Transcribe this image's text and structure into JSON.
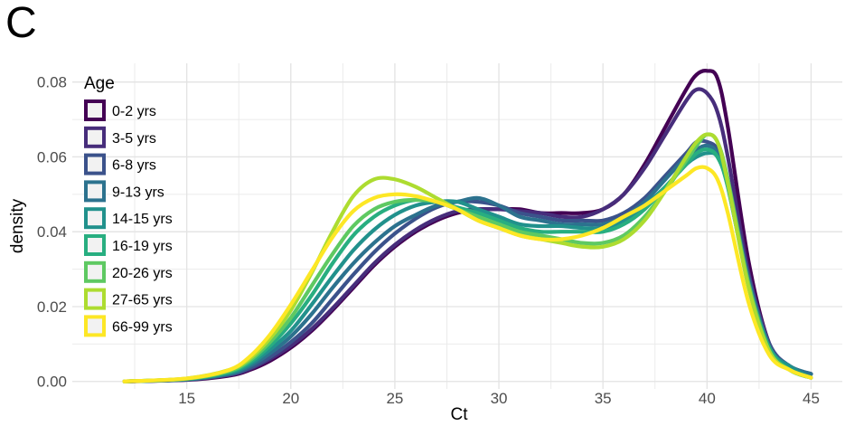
{
  "panel_label": "C",
  "chart_data": {
    "type": "line",
    "kind": "density",
    "xlabel": "Ct",
    "ylabel": "density",
    "xlim": [
      9.5,
      46.5
    ],
    "ylim": [
      -0.002,
      0.085
    ],
    "xticks": [
      15,
      20,
      25,
      30,
      35,
      40,
      45
    ],
    "xtick_labels": [
      "15",
      "20",
      "25",
      "30",
      "35",
      "40",
      "45"
    ],
    "yticks": [
      0.0,
      0.02,
      0.04,
      0.06,
      0.08
    ],
    "ytick_labels": [
      "0.00",
      "0.02",
      "0.04",
      "0.06",
      "0.08"
    ],
    "grid": true,
    "legend": {
      "title": "Age",
      "placement": "top-left"
    },
    "x": [
      12,
      15,
      17,
      18,
      19,
      20,
      21,
      22,
      23,
      24,
      25,
      26,
      27,
      28,
      29,
      30,
      31,
      32,
      33,
      34,
      35,
      36,
      37,
      38,
      39,
      39.5,
      40,
      40.5,
      41,
      42,
      43,
      44,
      45
    ],
    "series": [
      {
        "name": "0-2 yrs",
        "color": "#440154",
        "values": [
          0.0,
          0.0004,
          0.0015,
          0.003,
          0.0055,
          0.009,
          0.0135,
          0.019,
          0.025,
          0.031,
          0.036,
          0.04,
          0.043,
          0.045,
          0.046,
          0.046,
          0.046,
          0.045,
          0.045,
          0.045,
          0.046,
          0.05,
          0.058,
          0.068,
          0.078,
          0.082,
          0.083,
          0.081,
          0.068,
          0.032,
          0.01,
          0.004,
          0.002
        ]
      },
      {
        "name": "3-5 yrs",
        "color": "#472d7b",
        "values": [
          0.0,
          0.0005,
          0.0017,
          0.0033,
          0.006,
          0.0095,
          0.014,
          0.0195,
          0.0255,
          0.0315,
          0.0365,
          0.0405,
          0.0435,
          0.0455,
          0.046,
          0.046,
          0.0455,
          0.045,
          0.044,
          0.044,
          0.046,
          0.05,
          0.057,
          0.066,
          0.075,
          0.078,
          0.077,
          0.072,
          0.06,
          0.029,
          0.01,
          0.004,
          0.002
        ]
      },
      {
        "name": "6-8 yrs",
        "color": "#3b528b",
        "values": [
          0.0,
          0.0005,
          0.0018,
          0.0035,
          0.0065,
          0.0105,
          0.0155,
          0.022,
          0.0285,
          0.0345,
          0.0395,
          0.0435,
          0.0465,
          0.048,
          0.048,
          0.047,
          0.045,
          0.044,
          0.043,
          0.043,
          0.043,
          0.045,
          0.049,
          0.055,
          0.061,
          0.064,
          0.064,
          0.062,
          0.054,
          0.028,
          0.01,
          0.004,
          0.002
        ]
      },
      {
        "name": "9-13 yrs",
        "color": "#2c728e",
        "values": [
          0.0,
          0.0006,
          0.002,
          0.004,
          0.0075,
          0.012,
          0.018,
          0.025,
          0.0315,
          0.037,
          0.0415,
          0.0445,
          0.047,
          0.048,
          0.049,
          0.047,
          0.044,
          0.043,
          0.042,
          0.042,
          0.042,
          0.044,
          0.048,
          0.054,
          0.06,
          0.062,
          0.063,
          0.061,
          0.053,
          0.027,
          0.009,
          0.004,
          0.002
        ]
      },
      {
        "name": "14-15 yrs",
        "color": "#21918c",
        "values": [
          0.0,
          0.0006,
          0.0022,
          0.0045,
          0.0085,
          0.0135,
          0.0205,
          0.028,
          0.035,
          0.0405,
          0.0445,
          0.047,
          0.048,
          0.048,
          0.046,
          0.044,
          0.042,
          0.0415,
          0.0415,
          0.041,
          0.041,
          0.043,
          0.047,
          0.052,
          0.058,
          0.06,
          0.061,
          0.06,
          0.052,
          0.026,
          0.009,
          0.004,
          0.001
        ]
      },
      {
        "name": "16-19 yrs",
        "color": "#28ae80",
        "values": [
          0.0,
          0.0007,
          0.0025,
          0.005,
          0.0095,
          0.0155,
          0.023,
          0.0315,
          0.039,
          0.044,
          0.047,
          0.0485,
          0.048,
          0.0465,
          0.045,
          0.043,
          0.041,
          0.04,
          0.04,
          0.04,
          0.04,
          0.042,
          0.046,
          0.052,
          0.058,
          0.061,
          0.062,
          0.06,
          0.052,
          0.026,
          0.009,
          0.003,
          0.001
        ]
      },
      {
        "name": "20-26 yrs",
        "color": "#5ec962",
        "values": [
          0.0,
          0.0007,
          0.0027,
          0.0055,
          0.0105,
          0.017,
          0.0255,
          0.034,
          0.0415,
          0.046,
          0.048,
          0.0485,
          0.048,
          0.046,
          0.044,
          0.042,
          0.04,
          0.039,
          0.038,
          0.037,
          0.037,
          0.039,
          0.044,
          0.051,
          0.059,
          0.063,
          0.066,
          0.064,
          0.054,
          0.026,
          0.008,
          0.003,
          0.001
        ]
      },
      {
        "name": "27-65 yrs",
        "color": "#addc30",
        "values": [
          0.0,
          0.0008,
          0.003,
          0.006,
          0.0115,
          0.019,
          0.029,
          0.04,
          0.0495,
          0.054,
          0.054,
          0.052,
          0.049,
          0.046,
          0.043,
          0.041,
          0.039,
          0.038,
          0.037,
          0.036,
          0.036,
          0.038,
          0.043,
          0.051,
          0.06,
          0.064,
          0.066,
          0.064,
          0.053,
          0.025,
          0.008,
          0.003,
          0.001
        ]
      },
      {
        "name": "66-99 yrs",
        "color": "#fde725",
        "values": [
          0.0,
          0.0008,
          0.003,
          0.0065,
          0.0125,
          0.0205,
          0.0295,
          0.0385,
          0.0455,
          0.049,
          0.05,
          0.0495,
          0.048,
          0.046,
          0.043,
          0.041,
          0.039,
          0.038,
          0.038,
          0.039,
          0.041,
          0.044,
          0.047,
          0.051,
          0.055,
          0.057,
          0.057,
          0.054,
          0.045,
          0.021,
          0.007,
          0.003,
          0.001
        ]
      }
    ]
  }
}
